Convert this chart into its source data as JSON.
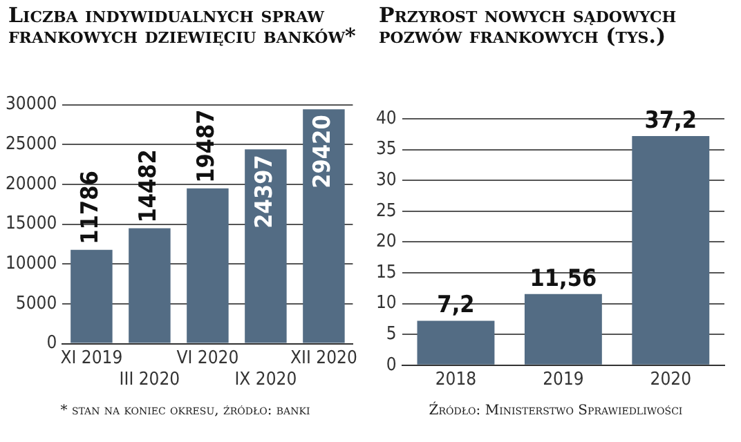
{
  "chart_data": [
    {
      "type": "bar",
      "title": "Liczba indywidualnych spraw frankowych dziewięciu banków*",
      "categories": [
        "XI 2019",
        "III 2020",
        "VI 2020",
        "IX 2020",
        "XII 2020"
      ],
      "values": [
        11786,
        14482,
        19487,
        24397,
        29420
      ],
      "color": "#536c84",
      "ylim": [
        0,
        30000
      ],
      "yticks": [
        0,
        5000,
        10000,
        15000,
        20000,
        25000,
        30000
      ],
      "grid": "y",
      "data_labels": true,
      "annotations": [
        "* stan na koniec okresu, źródło: banki"
      ]
    },
    {
      "type": "bar",
      "title": "Przyrost nowych sądowych pozwów frankowych (tys.)",
      "categories": [
        "2018",
        "2019",
        "2020"
      ],
      "values": [
        7.2,
        11.56,
        37.2
      ],
      "value_labels": [
        "7,2",
        "11,56",
        "37,2"
      ],
      "color": "#536c84",
      "ylim": [
        0,
        40
      ],
      "yticks": [
        0,
        5,
        10,
        15,
        20,
        25,
        30,
        35,
        40
      ],
      "grid": "y",
      "annotations": [
        "Źródło: Ministerstwo Sprawiedliwości"
      ]
    }
  ]
}
